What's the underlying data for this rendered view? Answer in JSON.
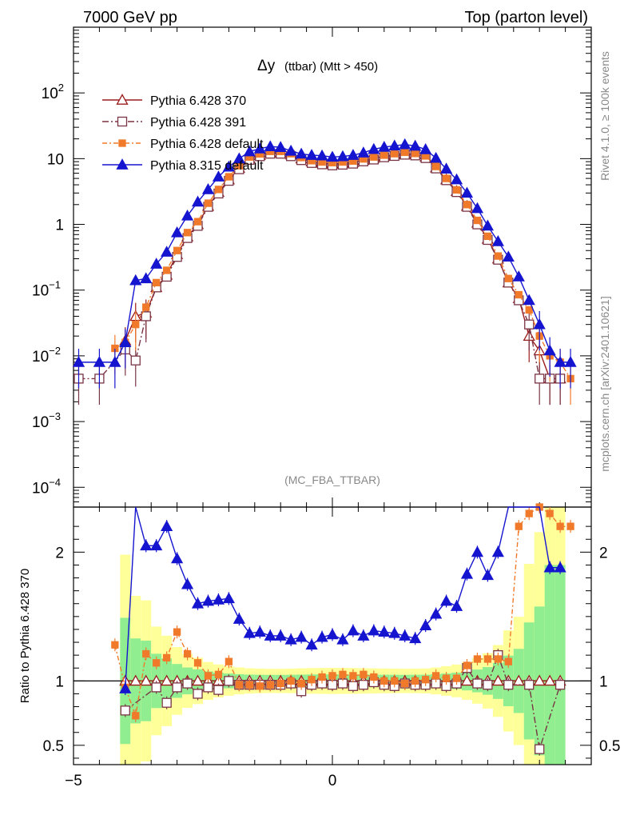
{
  "header": {
    "left": "7000 GeV pp",
    "right": "Top (parton level)"
  },
  "side_text": {
    "rivet": "Rivet 4.1.0, ≥ 100k events",
    "mcplots": "mcplots.cern.ch [arXiv:2401.10621]"
  },
  "chart_data": {
    "type": "line",
    "title": "Δy",
    "title_suffix": "(ttbar) (Mtt > 450)",
    "watermark": "(MC_FBA_TTBAR)",
    "xlim": [
      -5.0,
      5.0
    ],
    "ylim_log": [
      5e-05,
      1000
    ],
    "ratio_ylabel": "Ratio to Pythia 6.428 370",
    "ratio_ylim": [
      0.35,
      2.35
    ],
    "x_ticks": [
      -5,
      0
    ],
    "y_ticks_main": [
      {
        "v": 100,
        "base": "10",
        "exp": "2"
      },
      {
        "v": 10,
        "base": "10",
        "exp": ""
      },
      {
        "v": 1,
        "base": "1",
        "exp": ""
      },
      {
        "v": 0.1,
        "base": "10",
        "exp": "−1"
      },
      {
        "v": 0.01,
        "base": "10",
        "exp": "−2"
      },
      {
        "v": 0.001,
        "base": "10",
        "exp": "−3"
      },
      {
        "v": 0.0001,
        "base": "10",
        "exp": "−4"
      }
    ],
    "ratio_ticks": [
      {
        "v": 2,
        "t": "2"
      },
      {
        "v": 1,
        "t": "1"
      },
      {
        "v": 0.5,
        "t": "0.5"
      }
    ],
    "x": [
      -4.9,
      -4.5,
      -4.2,
      -4.0,
      -3.8,
      -3.6,
      -3.4,
      -3.2,
      -3.0,
      -2.8,
      -2.6,
      -2.4,
      -2.2,
      -2.0,
      -1.8,
      -1.6,
      -1.4,
      -1.2,
      -1.0,
      -0.8,
      -0.6,
      -0.4,
      -0.2,
      0.0,
      0.2,
      0.4,
      0.6,
      0.8,
      1.0,
      1.2,
      1.4,
      1.6,
      1.8,
      2.0,
      2.2,
      2.4,
      2.6,
      2.8,
      3.0,
      3.2,
      3.4,
      3.6,
      3.8,
      4.0,
      4.2,
      4.4,
      4.6
    ],
    "series": [
      {
        "name": "Pythia 6.428 370",
        "color": "#9b1b1b",
        "marker": "triangle-open",
        "dash": "",
        "values": [
          null,
          null,
          null,
          0.017,
          0.04,
          0.045,
          0.11,
          0.17,
          0.35,
          0.65,
          1.0,
          1.9,
          3.1,
          4.8,
          7.2,
          10.0,
          11.3,
          12.4,
          12.3,
          11.5,
          10.0,
          9.0,
          8.6,
          8.3,
          8.5,
          8.8,
          9.5,
          10.2,
          10.9,
          11.5,
          12.0,
          11.6,
          10.6,
          7.3,
          4.8,
          3.2,
          1.9,
          1.05,
          0.6,
          0.3,
          0.13,
          0.075,
          0.02,
          0.012,
          0.0045,
          0.0045,
          null
        ],
        "ratio": [
          null,
          null,
          null,
          1.0,
          1.0,
          1.0,
          1.0,
          1.0,
          1.0,
          1.0,
          1.0,
          1.0,
          1.0,
          1.0,
          1.0,
          1.0,
          1.0,
          1.0,
          1.0,
          1.0,
          1.0,
          1.0,
          1.0,
          1.0,
          1.0,
          1.0,
          1.0,
          1.0,
          1.0,
          1.0,
          1.0,
          1.0,
          1.0,
          1.0,
          1.0,
          1.0,
          1.0,
          1.0,
          1.0,
          1.0,
          1.0,
          1.0,
          1.0,
          1.0,
          1.0,
          1.0,
          null
        ]
      },
      {
        "name": "Pythia 6.428 391",
        "color": "#7a3545",
        "marker": "square-open",
        "dash": "8,3,2,3",
        "values": [
          0.0045,
          0.0045,
          null,
          0.0125,
          0.0085,
          0.04,
          0.11,
          0.16,
          0.32,
          0.62,
          0.95,
          1.85,
          2.95,
          4.6,
          6.9,
          9.6,
          10.9,
          11.9,
          11.9,
          10.9,
          9.5,
          8.6,
          8.2,
          7.9,
          8.1,
          8.4,
          9.1,
          9.7,
          10.5,
          11.0,
          11.5,
          11.2,
          10.2,
          7.1,
          4.7,
          3.1,
          1.85,
          1.0,
          0.58,
          0.29,
          0.13,
          0.07,
          0.03,
          0.0045,
          0.0045,
          0.0045,
          null
        ],
        "ratio": [
          null,
          null,
          null,
          0.77,
          null,
          null,
          0.95,
          0.83,
          0.95,
          0.98,
          0.9,
          0.95,
          0.93,
          1.0,
          0.97,
          0.97,
          0.97,
          0.97,
          0.97,
          0.98,
          0.92,
          0.97,
          0.98,
          0.97,
          0.98,
          0.96,
          0.97,
          0.99,
          0.97,
          0.96,
          0.98,
          0.97,
          0.97,
          0.98,
          0.96,
          0.98,
          1.1,
          0.98,
          0.97,
          1.2,
          0.97,
          null,
          0.97,
          0.47,
          null,
          0.97,
          null
        ]
      },
      {
        "name": "Pythia 6.428 default",
        "color": "#f07a2a",
        "marker": "square-filled",
        "dash": "6,3,2,3",
        "values": [
          null,
          null,
          0.013,
          0.016,
          0.03,
          0.055,
          0.13,
          0.2,
          0.4,
          0.75,
          1.1,
          2.1,
          3.4,
          5.3,
          7.8,
          10.6,
          11.8,
          12.9,
          12.9,
          11.9,
          10.4,
          9.3,
          8.9,
          8.7,
          8.9,
          9.2,
          9.9,
          10.6,
          11.3,
          11.9,
          12.5,
          12.0,
          11.0,
          7.6,
          5.0,
          3.35,
          2.0,
          1.15,
          0.66,
          0.33,
          0.15,
          0.085,
          0.05,
          0.02,
          0.01,
          0.008,
          0.0045
        ],
        "ratio": [
          null,
          null,
          1.28,
          0.95,
          0.73,
          1.21,
          1.14,
          1.18,
          1.38,
          1.21,
          1.14,
          1.04,
          1.05,
          1.15,
          0.97,
          0.97,
          0.96,
          0.97,
          0.98,
          1.0,
          0.98,
          1.01,
          1.03,
          1.04,
          1.05,
          1.04,
          1.05,
          1.03,
          1.0,
          1.0,
          0.98,
          1.0,
          1.01,
          1.04,
          1.02,
          1.02,
          1.12,
          1.17,
          1.17,
          1.17,
          1.15,
          2.2,
          2.3,
          2.35,
          2.3,
          2.2,
          2.2
        ]
      },
      {
        "name": "Pythia 8.315 default",
        "color": "#1515d0",
        "marker": "triangle-filled",
        "dash": "",
        "values": [
          0.008,
          0.008,
          0.008,
          0.016,
          0.14,
          0.15,
          0.25,
          0.38,
          0.75,
          1.35,
          2.2,
          3.4,
          5.3,
          7.5,
          10.0,
          12.8,
          14.2,
          15.3,
          14.9,
          13.1,
          11.8,
          11.3,
          11.1,
          10.6,
          10.8,
          11.3,
          12.3,
          13.9,
          15.0,
          15.7,
          16.4,
          15.6,
          13.8,
          10.2,
          7.0,
          4.8,
          3.0,
          1.75,
          0.95,
          0.55,
          0.32,
          0.16,
          0.07,
          0.03,
          0.012,
          0.008,
          0.008
        ],
        "ratio": [
          null,
          null,
          null,
          0.94,
          2.45,
          2.05,
          2.05,
          2.2,
          1.95,
          1.75,
          1.6,
          1.62,
          1.63,
          1.64,
          1.48,
          1.37,
          1.38,
          1.35,
          1.35,
          1.32,
          1.34,
          1.28,
          1.34,
          1.36,
          1.32,
          1.39,
          1.35,
          1.39,
          1.38,
          1.37,
          1.35,
          1.33,
          1.43,
          1.52,
          1.62,
          1.58,
          1.83,
          2.0,
          1.82,
          2.0,
          2.45,
          2.45,
          2.4,
          2.38,
          1.88,
          1.88,
          null
        ]
      }
    ]
  }
}
